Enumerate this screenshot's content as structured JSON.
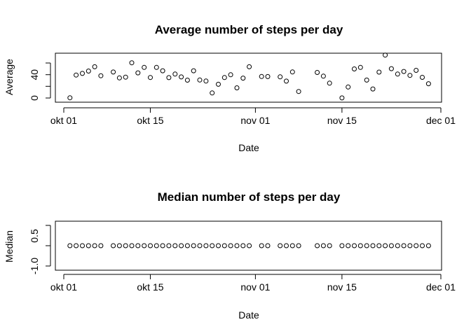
{
  "chart_data": [
    {
      "type": "scatter",
      "title": "Average number of steps per day",
      "xlabel": "Date",
      "ylabel": "Average",
      "x_ticks": [
        "okt 01",
        "okt 15",
        "nov 01",
        "nov 15",
        "dec 01"
      ],
      "y_ticks": [
        "0",
        "40"
      ],
      "ylim": [
        0,
        75
      ],
      "grid": false,
      "x": [
        "2012-10-02",
        "2012-10-03",
        "2012-10-04",
        "2012-10-05",
        "2012-10-06",
        "2012-10-07",
        "2012-10-09",
        "2012-10-10",
        "2012-10-11",
        "2012-10-12",
        "2012-10-13",
        "2012-10-14",
        "2012-10-15",
        "2012-10-16",
        "2012-10-17",
        "2012-10-18",
        "2012-10-19",
        "2012-10-20",
        "2012-10-21",
        "2012-10-22",
        "2012-10-23",
        "2012-10-24",
        "2012-10-25",
        "2012-10-26",
        "2012-10-27",
        "2012-10-28",
        "2012-10-29",
        "2012-10-30",
        "2012-10-31",
        "2012-11-02",
        "2012-11-03",
        "2012-11-05",
        "2012-11-06",
        "2012-11-07",
        "2012-11-08",
        "2012-11-11",
        "2012-11-12",
        "2012-11-13",
        "2012-11-15",
        "2012-11-16",
        "2012-11-17",
        "2012-11-18",
        "2012-11-19",
        "2012-11-20",
        "2012-11-21",
        "2012-11-22",
        "2012-11-23",
        "2012-11-24",
        "2012-11-25",
        "2012-11-26",
        "2012-11-27",
        "2012-11-28",
        "2012-11-29"
      ],
      "values": [
        0.4,
        39.4,
        42.1,
        46.2,
        53.5,
        38.2,
        44.5,
        34.4,
        35.8,
        60.4,
        43.1,
        52.4,
        35.2,
        52.4,
        46.7,
        34.9,
        41.1,
        36.1,
        30.6,
        46.7,
        30.9,
        29.0,
        8.7,
        23.5,
        35.1,
        39.8,
        17.4,
        34.1,
        53.5,
        36.8,
        36.7,
        36.2,
        28.9,
        44.7,
        11.2,
        43.8,
        37.4,
        25.5,
        0.1,
        18.9,
        49.8,
        52.5,
        30.7,
        15.5,
        44.4,
        73.6,
        50.3,
        41.1,
        45.5,
        38.8,
        47.4,
        35.4,
        24.5
      ]
    },
    {
      "type": "scatter",
      "title": "Median number of steps per day",
      "xlabel": "Date",
      "ylabel": "Median",
      "x_ticks": [
        "okt 01",
        "okt 15",
        "nov 01",
        "nov 15",
        "dec 01"
      ],
      "y_ticks": [
        "-1.0",
        "0.5"
      ],
      "ylim": [
        -1.0,
        1.0
      ],
      "grid": false,
      "x": [
        "2012-10-02",
        "2012-10-03",
        "2012-10-04",
        "2012-10-05",
        "2012-10-06",
        "2012-10-07",
        "2012-10-09",
        "2012-10-10",
        "2012-10-11",
        "2012-10-12",
        "2012-10-13",
        "2012-10-14",
        "2012-10-15",
        "2012-10-16",
        "2012-10-17",
        "2012-10-18",
        "2012-10-19",
        "2012-10-20",
        "2012-10-21",
        "2012-10-22",
        "2012-10-23",
        "2012-10-24",
        "2012-10-25",
        "2012-10-26",
        "2012-10-27",
        "2012-10-28",
        "2012-10-29",
        "2012-10-30",
        "2012-10-31",
        "2012-11-02",
        "2012-11-03",
        "2012-11-05",
        "2012-11-06",
        "2012-11-07",
        "2012-11-08",
        "2012-11-11",
        "2012-11-12",
        "2012-11-13",
        "2012-11-15",
        "2012-11-16",
        "2012-11-17",
        "2012-11-18",
        "2012-11-19",
        "2012-11-20",
        "2012-11-21",
        "2012-11-22",
        "2012-11-23",
        "2012-11-24",
        "2012-11-25",
        "2012-11-26",
        "2012-11-27",
        "2012-11-28",
        "2012-11-29"
      ],
      "values": [
        0,
        0,
        0,
        0,
        0,
        0,
        0,
        0,
        0,
        0,
        0,
        0,
        0,
        0,
        0,
        0,
        0,
        0,
        0,
        0,
        0,
        0,
        0,
        0,
        0,
        0,
        0,
        0,
        0,
        0,
        0,
        0,
        0,
        0,
        0,
        0,
        0,
        0,
        0,
        0,
        0,
        0,
        0,
        0,
        0,
        0,
        0,
        0,
        0,
        0,
        0,
        0,
        0
      ]
    }
  ]
}
